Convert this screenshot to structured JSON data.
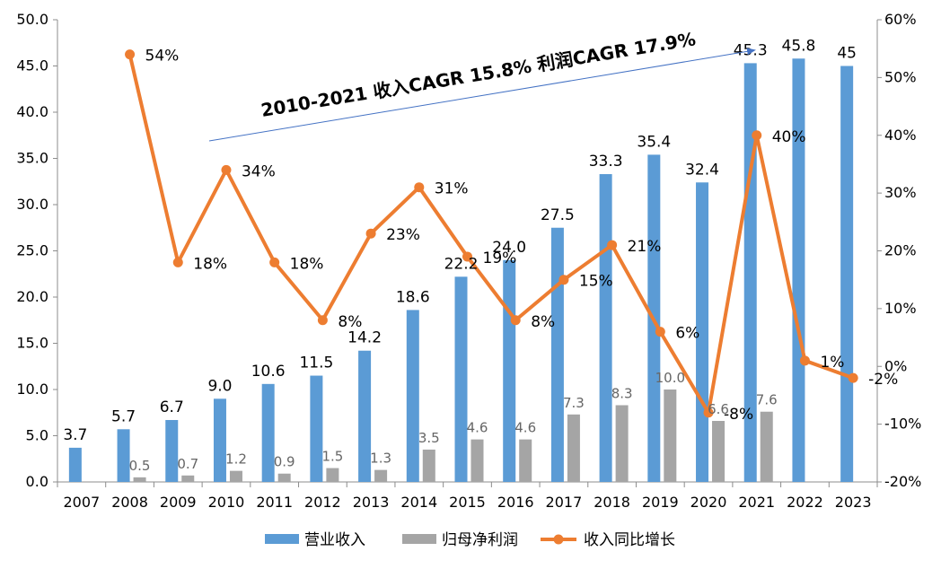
{
  "chart_data": {
    "type": "bar+line",
    "categories": [
      "2007",
      "2008",
      "2009",
      "2010",
      "2011",
      "2012",
      "2013",
      "2014",
      "2015",
      "2016",
      "2017",
      "2018",
      "2019",
      "2020",
      "2021",
      "2022",
      "2023"
    ],
    "series": [
      {
        "name": "营业收入",
        "kind": "bar",
        "axis": "left",
        "color": "#5B9BD5",
        "values": [
          3.7,
          5.7,
          6.7,
          9.0,
          10.6,
          11.5,
          14.2,
          18.6,
          22.2,
          24.0,
          27.5,
          33.3,
          35.4,
          32.4,
          45.3,
          45.8,
          45
        ],
        "labels": [
          "3.7",
          "5.7",
          "6.7",
          "9.0",
          "10.6",
          "11.5",
          "14.2",
          "18.6",
          "22.2",
          "24.0",
          "27.5",
          "33.3",
          "35.4",
          "32.4",
          "45.3",
          "45.8",
          "45"
        ]
      },
      {
        "name": "归母净利润",
        "kind": "bar",
        "axis": "left",
        "color": "#A5A5A5",
        "values": [
          null,
          0.5,
          0.7,
          1.2,
          0.9,
          1.5,
          1.3,
          3.5,
          4.6,
          4.6,
          7.3,
          8.3,
          10.0,
          6.6,
          7.6,
          null,
          null
        ],
        "labels": [
          "",
          "0.5",
          "0.7",
          "1.2",
          "0.9",
          "1.5",
          "1.3",
          "3.5",
          "4.6",
          "4.6",
          "7.3",
          "8.3",
          "10.0",
          "6.6",
          "7.6",
          "",
          ""
        ]
      },
      {
        "name": "收入同比增长",
        "kind": "line",
        "axis": "right",
        "color": "#ED7D31",
        "values": [
          null,
          54,
          18,
          34,
          18,
          8,
          23,
          31,
          19,
          8,
          15,
          21,
          6,
          -8,
          40,
          1,
          -2
        ],
        "labels": [
          "",
          "54%",
          "18%",
          "34%",
          "18%",
          "8%",
          "23%",
          "31%",
          "19%",
          "8%",
          "15%",
          "21%",
          "6%",
          "-8%",
          "40%",
          "1%",
          "-2%"
        ]
      }
    ],
    "left_axis": {
      "ylim": [
        0,
        50
      ],
      "ticks": [
        "0.0",
        "5.0",
        "10.0",
        "15.0",
        "20.0",
        "25.0",
        "30.0",
        "35.0",
        "40.0",
        "45.0",
        "50.0"
      ]
    },
    "right_axis": {
      "ylim": [
        -20,
        60
      ],
      "ticks": [
        "-20%",
        "-10%",
        "0%",
        "10%",
        "20%",
        "30%",
        "40%",
        "50%",
        "60%"
      ]
    },
    "annotation": {
      "text": "2010-2021 收入CAGR 15.8%  利润CAGR 17.9%",
      "arrow_color": "#4472C4"
    },
    "legend": {
      "placement": "bottom"
    },
    "grid": false
  }
}
